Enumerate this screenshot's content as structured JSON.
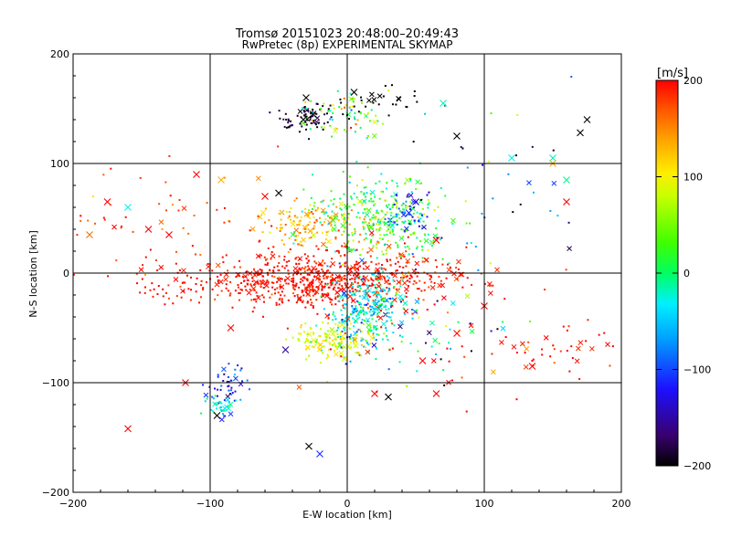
{
  "chart_data": {
    "type": "scatter",
    "title": "Tromsø 20151023 20:48:00–20:49:43",
    "subtitle": "RwPretec (8p) EXPERIMENTAL SKYMAP",
    "xlabel": "E-W location [km]",
    "ylabel": "N-S location [km]",
    "xlim": [
      -200,
      200
    ],
    "ylim": [
      -200,
      200
    ],
    "xticks": [
      -200,
      -100,
      0,
      100,
      200
    ],
    "yticks": [
      -200,
      -100,
      0,
      100,
      200
    ],
    "xtick_labels": [
      "−200",
      "−100",
      "0",
      "100",
      "200"
    ],
    "ytick_labels": [
      "−200",
      "−100",
      "0",
      "100",
      "200"
    ],
    "grid": true,
    "marker_types": [
      "dot",
      "cross"
    ],
    "colorbar": {
      "label": "[m/s]",
      "range": [
        -200,
        200
      ],
      "ticks": [
        200,
        100,
        0,
        -100,
        -200
      ],
      "tick_labels": [
        "200",
        "100",
        "0",
        "−100",
        "−200"
      ],
      "colormap": [
        "#000000",
        "#3a0070",
        "#1c10ff",
        "#00a0ff",
        "#00f0ff",
        "#00ff60",
        "#40ff00",
        "#c8ff00",
        "#ffee00",
        "#ffa000",
        "#ff5000",
        "#ff0000"
      ]
    },
    "clusters": [
      {
        "cx": -20,
        "cy": -5,
        "sx": 38,
        "sy": 14,
        "n": 520,
        "v": 195,
        "vs": 20
      },
      {
        "cx": -80,
        "cy": -10,
        "sx": 45,
        "sy": 10,
        "n": 140,
        "v": 195,
        "vs": 15
      },
      {
        "cx": 45,
        "cy": -5,
        "sx": 30,
        "sy": 10,
        "n": 110,
        "v": 185,
        "vs": 25
      },
      {
        "cx": -25,
        "cy": 45,
        "sx": 20,
        "sy": 10,
        "n": 140,
        "v": 120,
        "vs": 25
      },
      {
        "cx": 25,
        "cy": 50,
        "sx": 25,
        "sy": 18,
        "n": 320,
        "v": 10,
        "vs": 40
      },
      {
        "cx": 45,
        "cy": 55,
        "sx": 8,
        "sy": 8,
        "n": 45,
        "v": -120,
        "vs": 25
      },
      {
        "cx": 15,
        "cy": -35,
        "sx": 14,
        "sy": 18,
        "n": 280,
        "v": -60,
        "vs": 30
      },
      {
        "cx": -10,
        "cy": -60,
        "sx": 15,
        "sy": 8,
        "n": 140,
        "v": 70,
        "vs": 25
      },
      {
        "cx": -30,
        "cy": 140,
        "sx": 10,
        "sy": 6,
        "n": 70,
        "v": -185,
        "vs": 15
      },
      {
        "cx": 0,
        "cy": 145,
        "sx": 15,
        "sy": 10,
        "n": 70,
        "v": 20,
        "vs": 60
      },
      {
        "cx": 20,
        "cy": 155,
        "sx": 18,
        "sy": 8,
        "n": 30,
        "v": -200,
        "vs": 5
      },
      {
        "cx": -88,
        "cy": -105,
        "sx": 8,
        "sy": 12,
        "n": 50,
        "v": -120,
        "vs": 20
      },
      {
        "cx": -90,
        "cy": -122,
        "sx": 5,
        "sy": 4,
        "n": 30,
        "v": -40,
        "vs": 20
      },
      {
        "cx": 60,
        "cy": -60,
        "sx": 40,
        "sy": 25,
        "n": 80,
        "v": 80,
        "vs": 150
      },
      {
        "cx": -120,
        "cy": 40,
        "sx": 50,
        "sy": 30,
        "n": 60,
        "v": 170,
        "vs": 40
      },
      {
        "cx": 150,
        "cy": -70,
        "sx": 25,
        "sy": 15,
        "n": 40,
        "v": 195,
        "vs": 15
      },
      {
        "cx": 100,
        "cy": 70,
        "sx": 40,
        "sy": 40,
        "n": 40,
        "v": -100,
        "vs": 80
      }
    ],
    "crosses": [
      {
        "x": -188,
        "y": 35,
        "v": 150
      },
      {
        "x": -175,
        "y": 65,
        "v": 200
      },
      {
        "x": -160,
        "y": 60,
        "v": -50
      },
      {
        "x": -160,
        "y": -142,
        "v": 200
      },
      {
        "x": -145,
        "y": 40,
        "v": 200
      },
      {
        "x": -130,
        "y": 35,
        "v": 200
      },
      {
        "x": -118,
        "y": -100,
        "v": 200
      },
      {
        "x": -110,
        "y": 90,
        "v": 200
      },
      {
        "x": -92,
        "y": 85,
        "v": 120
      },
      {
        "x": -95,
        "y": -130,
        "v": -200
      },
      {
        "x": -85,
        "y": -50,
        "v": 200
      },
      {
        "x": -60,
        "y": 70,
        "v": 200
      },
      {
        "x": -50,
        "y": 73,
        "v": -200
      },
      {
        "x": -45,
        "y": -70,
        "v": -150
      },
      {
        "x": -32,
        "y": 140,
        "v": -200
      },
      {
        "x": -28,
        "y": -158,
        "v": -200
      },
      {
        "x": -25,
        "y": 145,
        "v": -200
      },
      {
        "x": -20,
        "y": -165,
        "v": -120
      },
      {
        "x": 5,
        "y": 165,
        "v": -200
      },
      {
        "x": 20,
        "y": -110,
        "v": 200
      },
      {
        "x": 30,
        "y": -113,
        "v": -200
      },
      {
        "x": 45,
        "y": 55,
        "v": -120
      },
      {
        "x": 50,
        "y": 65,
        "v": -140
      },
      {
        "x": 55,
        "y": -80,
        "v": 200
      },
      {
        "x": 65,
        "y": 30,
        "v": 200
      },
      {
        "x": 65,
        "y": -110,
        "v": 200
      },
      {
        "x": 70,
        "y": 155,
        "v": -40
      },
      {
        "x": 80,
        "y": 125,
        "v": -200
      },
      {
        "x": 80,
        "y": -55,
        "v": 200
      },
      {
        "x": 100,
        "y": -30,
        "v": 200
      },
      {
        "x": 120,
        "y": 105,
        "v": -50
      },
      {
        "x": 135,
        "y": -85,
        "v": 200
      },
      {
        "x": 150,
        "y": 105,
        "v": -40
      },
      {
        "x": 150,
        "y": 100,
        "v": 120
      },
      {
        "x": 160,
        "y": 85,
        "v": -30
      },
      {
        "x": 170,
        "y": 128,
        "v": -200
      },
      {
        "x": 175,
        "y": 140,
        "v": -200
      },
      {
        "x": 160,
        "y": 65,
        "v": 200
      },
      {
        "x": -30,
        "y": 160,
        "v": -200
      }
    ]
  }
}
